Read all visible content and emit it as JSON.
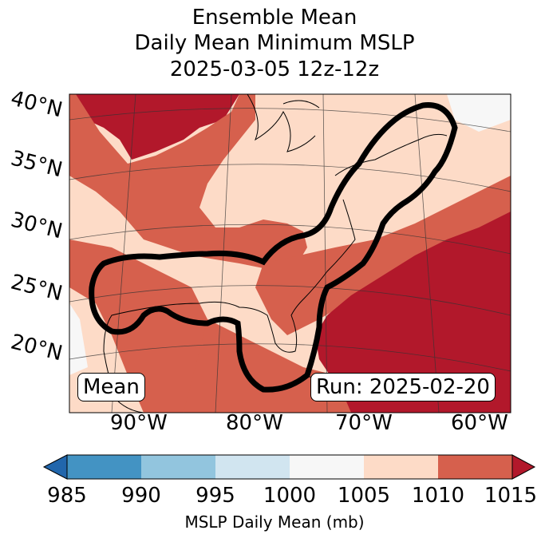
{
  "title_lines": [
    "Ensemble Mean",
    "Daily Mean Minimum MSLP",
    "2025-03-05 12z-12z"
  ],
  "lat_labels": [
    "40°N",
    "35°N",
    "30°N",
    "25°N",
    "20°N"
  ],
  "lon_labels": [
    "90°W",
    "80°W",
    "70°W",
    "60°W"
  ],
  "mean_box": "Mean",
  "run_box": "Run: 2025-02-20",
  "colorbar": {
    "ticks": [
      "985",
      "990",
      "995",
      "1000",
      "1005",
      "1010",
      "1015"
    ],
    "label": "MSLP Daily Mean (mb)",
    "colors": [
      "#2166ac",
      "#4393c3",
      "#92c5de",
      "#d1e5f0",
      "#f7f7f7",
      "#fddbc7",
      "#d6604d",
      "#b2182b"
    ]
  }
}
